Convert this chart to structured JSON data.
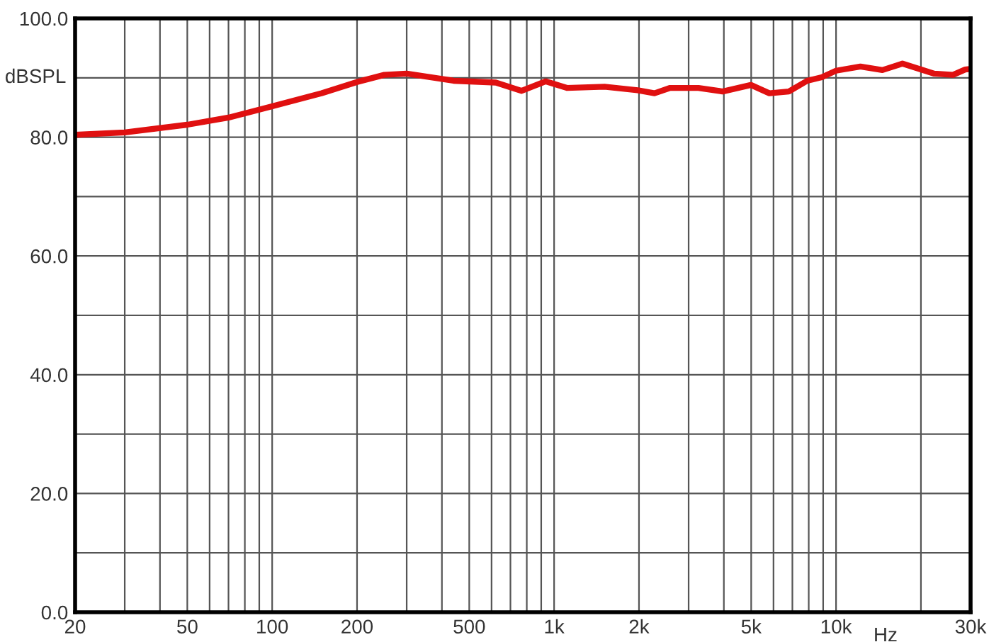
{
  "chart_data": {
    "type": "line",
    "xlabel": "Hz",
    "ylabel": "dBSPL",
    "log": "x",
    "grid": true,
    "legend": false,
    "marker": "none",
    "line_style": "solid",
    "xlim": [
      20,
      30000
    ],
    "ylim": [
      0,
      100
    ],
    "xticks": [
      20,
      {
        "value": 30,
        "label": null
      },
      {
        "value": 40,
        "label": null
      },
      50,
      {
        "value": 60,
        "label": null
      },
      {
        "value": 70,
        "label": null
      },
      {
        "value": 80,
        "label": null
      },
      {
        "value": 90,
        "label": null
      },
      100,
      200,
      {
        "value": 300,
        "label": null
      },
      {
        "value": 400,
        "label": null
      },
      500,
      {
        "value": 600,
        "label": null
      },
      {
        "value": 700,
        "label": null
      },
      {
        "value": 800,
        "label": null
      },
      {
        "value": 900,
        "label": null
      },
      {
        "value": 1000,
        "label": "1k"
      },
      {
        "value": 2000,
        "label": "2k"
      },
      {
        "value": 3000,
        "label": null
      },
      {
        "value": 4000,
        "label": null
      },
      {
        "value": 5000,
        "label": "5k"
      },
      {
        "value": 6000,
        "label": null
      },
      {
        "value": 7000,
        "label": null
      },
      {
        "value": 8000,
        "label": null
      },
      {
        "value": 9000,
        "label": null
      },
      {
        "value": 10000,
        "label": "10k"
      },
      {
        "value": 20000,
        "label": null
      },
      {
        "value": 30000,
        "label": "30k"
      }
    ],
    "yticks": [
      {
        "value": 0,
        "label": "0.0"
      },
      {
        "value": 10,
        "label": null
      },
      {
        "value": 20,
        "label": "20.0"
      },
      {
        "value": 30,
        "label": null
      },
      {
        "value": 40,
        "label": "40.0"
      },
      {
        "value": 50,
        "label": null
      },
      {
        "value": 60,
        "label": "60.0"
      },
      {
        "value": 70,
        "label": null
      },
      {
        "value": 80,
        "label": "80.0"
      },
      {
        "value": 90,
        "label": null
      },
      {
        "value": 100,
        "label": "100.0"
      }
    ],
    "x": [
      20,
      30,
      50,
      70,
      100,
      150,
      200,
      250,
      300,
      440,
      621,
      767,
      932,
      1110,
      1510,
      1980,
      2270,
      2580,
      3250,
      3960,
      4990,
      5800,
      6800,
      7900,
      8900,
      10000,
      12200,
      14600,
      17200,
      22300,
      26000,
      28700,
      30000
    ],
    "series": [
      {
        "color": "#e01010",
        "values": [
          80.4,
          80.8,
          82.1,
          83.3,
          85.2,
          87.4,
          89.3,
          90.5,
          90.7,
          89.5,
          89.2,
          87.8,
          89.4,
          88.3,
          88.5,
          87.9,
          87.4,
          88.3,
          88.3,
          87.7,
          88.8,
          87.4,
          87.7,
          89.5,
          90.1,
          91.2,
          91.9,
          91.3,
          92.4,
          90.7,
          90.5,
          91.4,
          91.5
        ]
      }
    ]
  }
}
